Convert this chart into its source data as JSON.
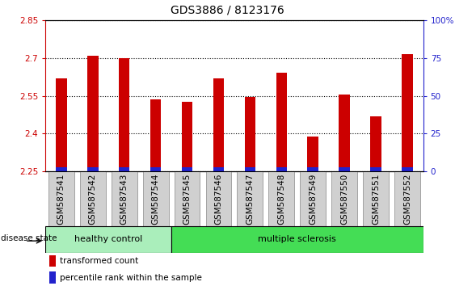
{
  "title": "GDS3886 / 8123176",
  "categories": [
    "GSM587541",
    "GSM587542",
    "GSM587543",
    "GSM587544",
    "GSM587545",
    "GSM587546",
    "GSM587547",
    "GSM587548",
    "GSM587549",
    "GSM587550",
    "GSM587551",
    "GSM587552"
  ],
  "red_values": [
    2.62,
    2.71,
    2.7,
    2.535,
    2.525,
    2.62,
    2.545,
    2.64,
    2.39,
    2.555,
    2.47,
    2.715
  ],
  "blue_pct": [
    3,
    3,
    3,
    3,
    3,
    3,
    3,
    3,
    3,
    3,
    3,
    3
  ],
  "ylim_left": [
    2.25,
    2.85
  ],
  "ylim_right": [
    0,
    100
  ],
  "yticks_left": [
    2.25,
    2.4,
    2.55,
    2.7,
    2.85
  ],
  "yticks_right": [
    0,
    25,
    50,
    75,
    100
  ],
  "ytick_labels_left": [
    "2.25",
    "2.4",
    "2.55",
    "2.7",
    "2.85"
  ],
  "ytick_labels_right": [
    "0",
    "25",
    "50",
    "75",
    "100%"
  ],
  "bar_color_red": "#cc0000",
  "bar_color_blue": "#2222cc",
  "bg_plot": "#ffffff",
  "bg_cell": "#d0d0d0",
  "healthy_count": 4,
  "ms_count": 8,
  "bg_healthy": "#aaeebb",
  "bg_ms": "#44dd55",
  "group_labels": [
    "healthy control",
    "multiple sclerosis"
  ],
  "disease_state_label": "disease state",
  "legend_red": "transformed count",
  "legend_blue": "percentile rank within the sample",
  "title_fontsize": 10,
  "tick_fontsize": 7.5,
  "legend_fontsize": 7.5,
  "disease_fontsize": 8
}
